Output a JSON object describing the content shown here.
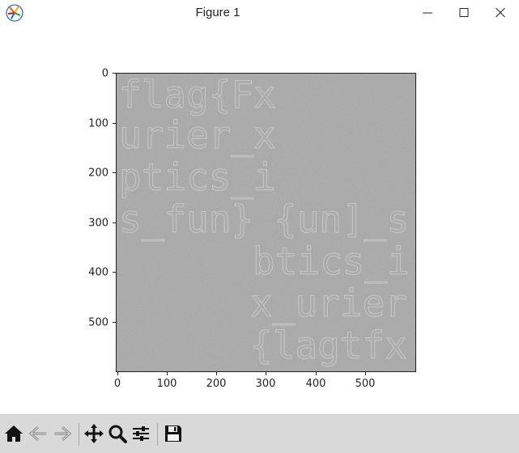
{
  "window": {
    "title": "Figure 1",
    "app_icon": "matplotlib-icon",
    "controls": [
      "minimize-icon",
      "maximize-icon",
      "close-icon"
    ]
  },
  "figure": {
    "image": {
      "description_colors": {
        "background": "#9e9e9e",
        "text_overlay": "#cfcfcf"
      },
      "text_lines": [
        "flag{Fx",
        "urier_x",
        "ptics_i",
        "s_fun}",
        "{un]_s",
        "btics_i",
        "x_urier",
        "{lagtfx"
      ],
      "rows": 600,
      "cols": 600
    },
    "y_ticks": [
      "0",
      "100",
      "200",
      "300",
      "400",
      "500"
    ],
    "x_ticks": [
      "0",
      "100",
      "200",
      "300",
      "400",
      "500"
    ]
  },
  "toolbar": {
    "buttons": [
      {
        "name": "home-button",
        "icon": "home-icon"
      },
      {
        "name": "back-button",
        "icon": "back-arrow-icon"
      },
      {
        "name": "forward-button",
        "icon": "forward-arrow-icon"
      },
      {
        "name": "pan-button",
        "icon": "move-icon"
      },
      {
        "name": "zoom-button",
        "icon": "magnifier-icon"
      },
      {
        "name": "configure-subplots-button",
        "icon": "sliders-icon"
      },
      {
        "name": "save-button",
        "icon": "floppy-disk-icon"
      }
    ]
  }
}
